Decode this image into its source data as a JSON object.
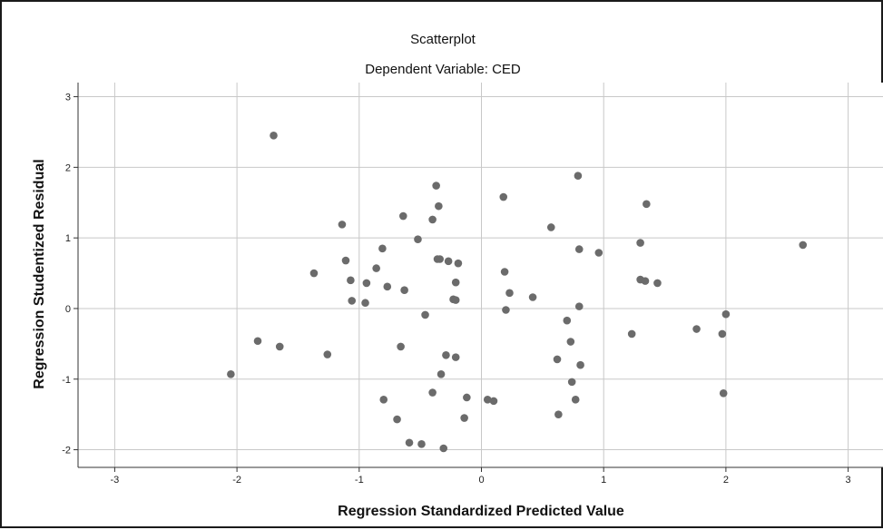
{
  "chart_data": {
    "type": "scatter",
    "title": "Scatterplot",
    "subtitle": "Dependent Variable: CED",
    "xlabel": "Regression Standardized Predicted Value",
    "ylabel": "Regression Studentized Residual",
    "xlim": [
      -3.3,
      3.3
    ],
    "ylim": [
      -2.25,
      3.2
    ],
    "xticks": [
      -3,
      -2,
      -1,
      0,
      1,
      2,
      3
    ],
    "yticks": [
      -2,
      -1,
      0,
      1,
      2,
      3
    ],
    "grid": true,
    "marker_color": "#6b6b6b",
    "points": [
      {
        "x": -1.7,
        "y": 2.45
      },
      {
        "x": -2.05,
        "y": -0.93
      },
      {
        "x": -1.83,
        "y": -0.46
      },
      {
        "x": -1.65,
        "y": -0.54
      },
      {
        "x": -1.37,
        "y": 0.5
      },
      {
        "x": -1.26,
        "y": -0.65
      },
      {
        "x": -1.14,
        "y": 1.19
      },
      {
        "x": -1.11,
        "y": 0.68
      },
      {
        "x": -1.07,
        "y": 0.4
      },
      {
        "x": -1.06,
        "y": 0.11
      },
      {
        "x": -0.95,
        "y": 0.08
      },
      {
        "x": -0.94,
        "y": 0.36
      },
      {
        "x": -0.86,
        "y": 0.57
      },
      {
        "x": -0.81,
        "y": 0.85
      },
      {
        "x": -0.8,
        "y": -1.29
      },
      {
        "x": -0.77,
        "y": 0.31
      },
      {
        "x": -0.69,
        "y": -1.57
      },
      {
        "x": -0.66,
        "y": -0.54
      },
      {
        "x": -0.64,
        "y": 1.31
      },
      {
        "x": -0.63,
        "y": 0.26
      },
      {
        "x": -0.59,
        "y": -1.9
      },
      {
        "x": -0.52,
        "y": 0.98
      },
      {
        "x": -0.49,
        "y": -1.92
      },
      {
        "x": -0.46,
        "y": -0.09
      },
      {
        "x": -0.4,
        "y": 1.26
      },
      {
        "x": -0.4,
        "y": -1.19
      },
      {
        "x": -0.37,
        "y": 1.74
      },
      {
        "x": -0.36,
        "y": 0.7
      },
      {
        "x": -0.35,
        "y": 1.45
      },
      {
        "x": -0.34,
        "y": 0.7
      },
      {
        "x": -0.33,
        "y": -0.93
      },
      {
        "x": -0.31,
        "y": -1.98
      },
      {
        "x": -0.29,
        "y": -0.66
      },
      {
        "x": -0.27,
        "y": 0.67
      },
      {
        "x": -0.23,
        "y": 0.13
      },
      {
        "x": -0.21,
        "y": 0.12
      },
      {
        "x": -0.21,
        "y": 0.37
      },
      {
        "x": -0.21,
        "y": -0.69
      },
      {
        "x": -0.19,
        "y": 0.64
      },
      {
        "x": -0.14,
        "y": -1.55
      },
      {
        "x": -0.12,
        "y": -1.26
      },
      {
        "x": 0.05,
        "y": -1.29
      },
      {
        "x": 0.1,
        "y": -1.31
      },
      {
        "x": 0.18,
        "y": 1.58
      },
      {
        "x": 0.19,
        "y": 0.52
      },
      {
        "x": 0.2,
        "y": -0.02
      },
      {
        "x": 0.23,
        "y": 0.22
      },
      {
        "x": 0.42,
        "y": 0.16
      },
      {
        "x": 0.57,
        "y": 1.15
      },
      {
        "x": 0.62,
        "y": -0.72
      },
      {
        "x": 0.63,
        "y": -1.5
      },
      {
        "x": 0.7,
        "y": -0.17
      },
      {
        "x": 0.73,
        "y": -0.47
      },
      {
        "x": 0.74,
        "y": -1.04
      },
      {
        "x": 0.77,
        "y": -1.29
      },
      {
        "x": 0.79,
        "y": 1.88
      },
      {
        "x": 0.8,
        "y": 0.84
      },
      {
        "x": 0.8,
        "y": 0.03
      },
      {
        "x": 0.81,
        "y": -0.8
      },
      {
        "x": 0.96,
        "y": 0.79
      },
      {
        "x": 1.23,
        "y": -0.36
      },
      {
        "x": 1.3,
        "y": 0.93
      },
      {
        "x": 1.3,
        "y": 0.41
      },
      {
        "x": 1.34,
        "y": 0.39
      },
      {
        "x": 1.35,
        "y": 1.48
      },
      {
        "x": 1.44,
        "y": 0.36
      },
      {
        "x": 1.76,
        "y": -0.29
      },
      {
        "x": 1.97,
        "y": -0.36
      },
      {
        "x": 1.98,
        "y": -1.2
      },
      {
        "x": 2.0,
        "y": -0.08
      },
      {
        "x": 2.63,
        "y": 0.9
      }
    ]
  }
}
